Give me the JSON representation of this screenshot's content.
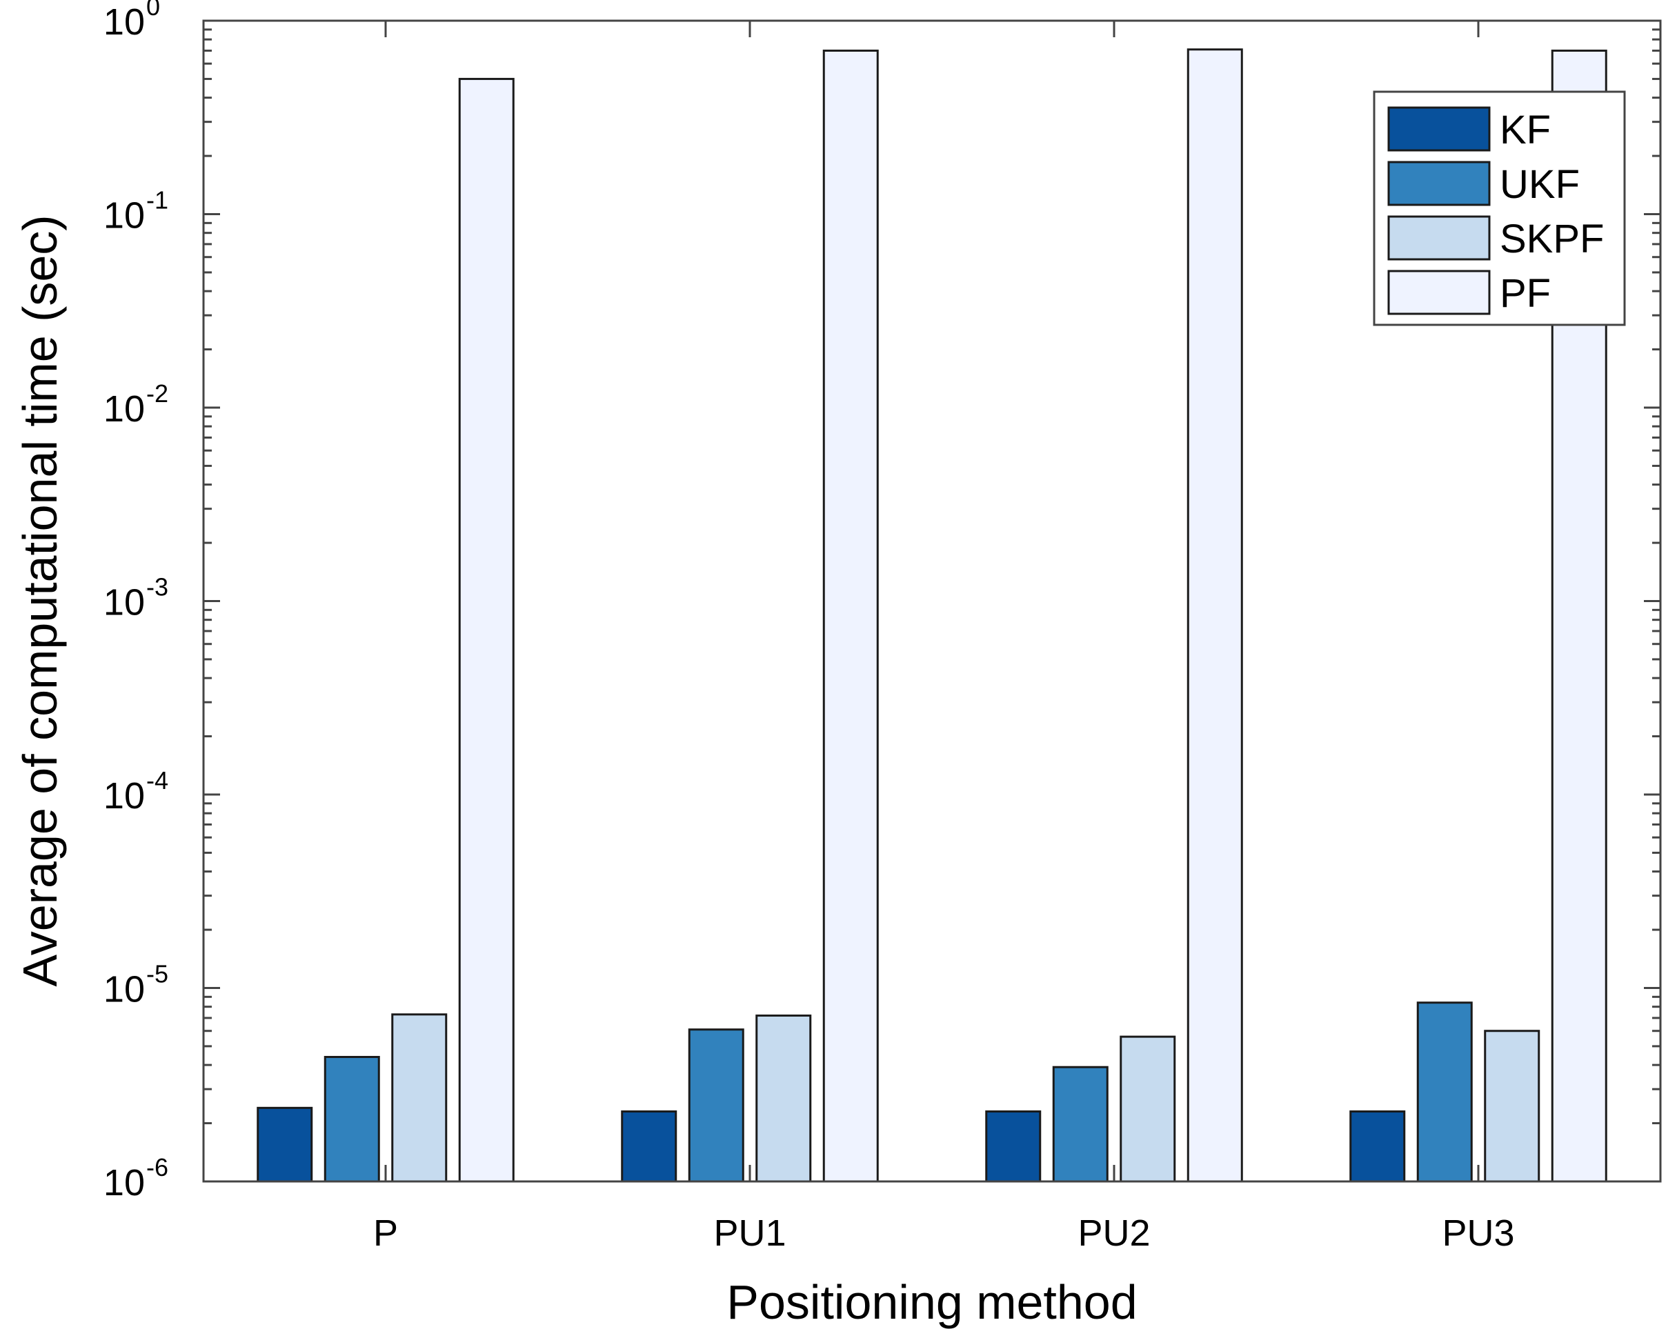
{
  "chart_data": {
    "type": "bar",
    "title": "",
    "xlabel": "Positioning method",
    "ylabel": "Average of computational time (sec)",
    "yscale": "log",
    "ylim": [
      1e-06,
      1
    ],
    "categories": [
      "P",
      "PU1",
      "PU2",
      "PU3"
    ],
    "y_ticks": [
      {
        "base": "10",
        "exp": "-6",
        "value": 1e-06
      },
      {
        "base": "10",
        "exp": "-5",
        "value": 1e-05
      },
      {
        "base": "10",
        "exp": "-4",
        "value": 0.0001
      },
      {
        "base": "10",
        "exp": "-3",
        "value": 0.001
      },
      {
        "base": "10",
        "exp": "-2",
        "value": 0.01
      },
      {
        "base": "10",
        "exp": "-1",
        "value": 0.1
      },
      {
        "base": "10",
        "exp": "0",
        "value": 1
      }
    ],
    "series": [
      {
        "name": "KF",
        "color": "#08519c",
        "values": [
          2.4e-06,
          2.3e-06,
          2.3e-06,
          2.3e-06
        ]
      },
      {
        "name": "UKF",
        "color": "#3182bd",
        "values": [
          4.4e-06,
          6.1e-06,
          3.9e-06,
          8.4e-06
        ]
      },
      {
        "name": "SKPF",
        "color": "#c6dbef",
        "values": [
          7.3e-06,
          7.2e-06,
          5.6e-06,
          6e-06
        ]
      },
      {
        "name": "PF",
        "color": "#eff3ff",
        "values": [
          0.5,
          0.7,
          0.71,
          0.7
        ]
      }
    ],
    "legend_position": "top-right",
    "grid": false
  }
}
